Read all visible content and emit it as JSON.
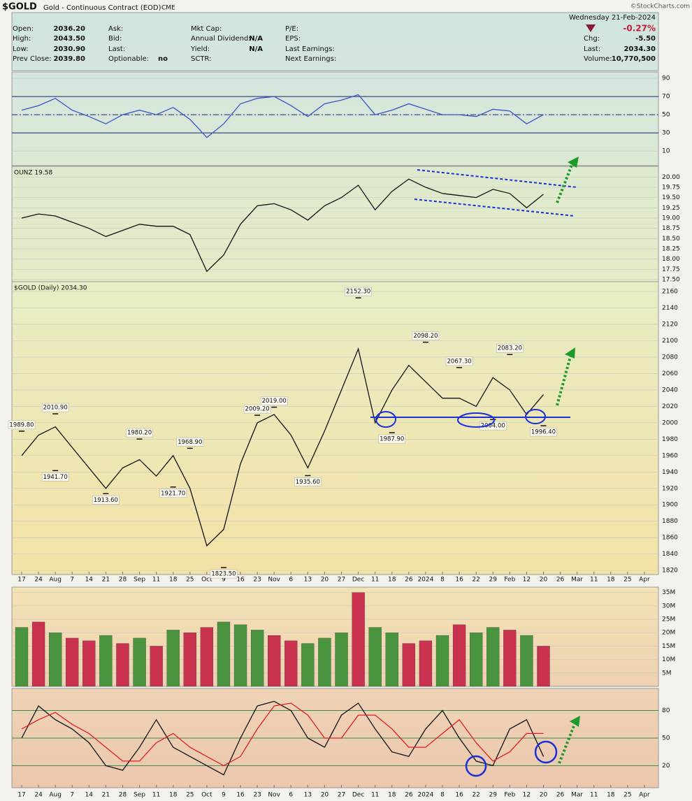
{
  "header": {
    "symbol": "$GOLD",
    "name": "Gold - Continuous Contract (EOD)",
    "exchange": "CME",
    "credit": "©StockCharts.com",
    "date": "Wednesday  21-Feb-2024",
    "change_pct": "-0.27%",
    "columns": [
      [
        {
          "label": "Open:",
          "value": "2036.20"
        },
        {
          "label": "High:",
          "value": "2043.50"
        },
        {
          "label": "Low:",
          "value": "2030.90"
        },
        {
          "label": "Prev Close:",
          "value": "2039.80"
        }
      ],
      [
        {
          "label": "Ask:"
        },
        {
          "label": "Bid:"
        },
        {
          "label": "Last:"
        },
        {
          "label": "Optionable:",
          "value": "no"
        }
      ],
      [
        {
          "label": "Mkt Cap:"
        },
        {
          "label": "Annual Dividend:",
          "value": "N/A"
        },
        {
          "label": "Yield:",
          "value": "N/A"
        },
        {
          "label": "SCTR:"
        }
      ],
      [
        {
          "label": "P/E:"
        },
        {
          "label": "EPS:"
        },
        {
          "label": "Last Earnings:"
        },
        {
          "label": "Next Earnings:"
        }
      ],
      [
        {
          "label": "Chg:",
          "value": "-5.50"
        },
        {
          "label": "Last:",
          "value": "2034.30"
        },
        {
          "label": "Volume:",
          "value": "10,770,500"
        }
      ]
    ]
  },
  "chart_data": [
    {
      "type": "line",
      "ylim": [
        -6,
        97
      ],
      "yticks": [
        10,
        30,
        50,
        70,
        90
      ],
      "grid": true,
      "hlines": [
        {
          "value": 70
        },
        {
          "value": 50,
          "dashed": true
        },
        {
          "value": 30
        }
      ],
      "series": [
        {
          "color": "#3a55c8",
          "values": [
            55,
            60,
            68,
            55,
            48,
            40,
            50,
            55,
            50,
            58,
            45,
            25,
            40,
            62,
            68,
            70,
            60,
            48,
            62,
            66,
            72,
            50,
            55,
            62,
            56,
            50,
            50,
            48,
            56,
            54,
            40,
            50,
            null,
            null,
            null,
            null,
            null,
            null
          ]
        }
      ]
    },
    {
      "type": "line",
      "title": "OUNZ 19.58",
      "ylim": [
        17.45,
        20.26
      ],
      "grid": true,
      "yticks": [
        {
          "value": 17.5,
          "label": "17.50"
        },
        17.75,
        {
          "value": 18,
          "label": "18.00"
        },
        18.25,
        {
          "value": 18.5,
          "label": "18.50"
        },
        18.75,
        {
          "value": 19,
          "label": "19.00"
        },
        19.25,
        {
          "value": 19.5,
          "label": "19.50"
        },
        19.75,
        {
          "value": 20,
          "label": "20.00"
        }
      ],
      "series": [
        {
          "color": "#111111",
          "values": [
            19.0,
            19.1,
            19.05,
            18.9,
            18.75,
            18.55,
            18.7,
            18.85,
            18.8,
            18.8,
            18.6,
            17.7,
            18.1,
            18.85,
            19.3,
            19.35,
            19.2,
            18.95,
            19.3,
            19.5,
            19.8,
            19.2,
            19.65,
            19.95,
            19.75,
            19.6,
            19.55,
            19.5,
            19.7,
            19.6,
            19.25,
            19.58,
            null,
            null,
            null,
            null,
            null,
            null
          ]
        }
      ]
    },
    {
      "type": "line",
      "title": "$GOLD (Daily) 2034.30",
      "ylim": [
        1815,
        2172
      ],
      "grid": true,
      "yticks": [
        1820,
        1840,
        1860,
        1880,
        1900,
        1920,
        1940,
        1960,
        1980,
        2000,
        2020,
        2040,
        2060,
        2080,
        2100,
        2120,
        2140,
        2160
      ],
      "categories": [
        "17",
        "24",
        "Aug",
        "7",
        "14",
        "21",
        "28",
        "Sep",
        "11",
        "18",
        "25",
        "Oct",
        "9",
        "16",
        "23",
        "Nov",
        "6",
        "13",
        "20",
        "27",
        "Dec",
        "11",
        "18",
        "26",
        "2024",
        "8",
        "16",
        "22",
        "29",
        "Feb",
        "12",
        "20",
        "26",
        "Mar",
        "11",
        "18",
        "25",
        "Apr"
      ],
      "series": [
        {
          "color": "#111111",
          "values": [
            1960,
            1985,
            1995,
            1970,
            1945,
            1920,
            1945,
            1955,
            1935,
            1960,
            1920,
            1850,
            1870,
            1950,
            2000,
            2010,
            1985,
            1945,
            1990,
            2040,
            2090,
            2000,
            2040,
            2070,
            2050,
            2030,
            2030,
            2020,
            2055,
            2040,
            2010,
            2034.3,
            null,
            null,
            null,
            null,
            null,
            null
          ]
        }
      ],
      "marked_highs": {
        "values": [
          1989.8,
          null,
          2010.9,
          null,
          null,
          null,
          null,
          1980.2,
          null,
          null,
          1968.9,
          null,
          null,
          null,
          2009.2,
          2019,
          null,
          null,
          null,
          null,
          2152.3,
          null,
          null,
          null,
          2098.2,
          null,
          2067.3,
          null,
          null,
          2083.2,
          null,
          null,
          null,
          null,
          null,
          null,
          null,
          null
        ],
        "value_labels": [
          "1989.80",
          null,
          "2010.90",
          null,
          null,
          null,
          null,
          "1980.20",
          null,
          null,
          "1968.90",
          null,
          null,
          null,
          "2009.20",
          "2019.00",
          null,
          null,
          null,
          null,
          "2152.30",
          null,
          null,
          null,
          "2098.20",
          null,
          "2067.30",
          null,
          null,
          "2083.20",
          null,
          null,
          null,
          null,
          null,
          null,
          null,
          null
        ]
      },
      "marked_lows": {
        "values": [
          null,
          null,
          1941.7,
          null,
          null,
          1913.6,
          null,
          null,
          null,
          1921.7,
          null,
          null,
          1823.5,
          null,
          null,
          null,
          null,
          1935.6,
          null,
          null,
          null,
          null,
          1987.9,
          null,
          null,
          null,
          null,
          null,
          2004,
          null,
          null,
          1996.4,
          null,
          null,
          null,
          null,
          null,
          null
        ],
        "value_labels": [
          null,
          null,
          "1941.70",
          null,
          null,
          "1913.60",
          null,
          null,
          null,
          "1921.70",
          null,
          null,
          "1823.50",
          null,
          null,
          null,
          null,
          "1935.60",
          null,
          null,
          null,
          null,
          "1987.90",
          null,
          null,
          null,
          null,
          null,
          "2004.00",
          null,
          null,
          "1996.40",
          null,
          null,
          null,
          null,
          null,
          null
        ]
      }
    },
    {
      "type": "bar",
      "ylim": [
        0,
        37000000
      ],
      "grid": true,
      "yticks": [
        {
          "value": 5000000,
          "label": "5M"
        },
        {
          "value": 10000000,
          "label": "10M"
        },
        {
          "value": 15000000,
          "label": "15M"
        },
        {
          "value": 20000000,
          "label": "20M"
        },
        {
          "value": 25000000,
          "label": "25M"
        },
        {
          "value": 30000000,
          "label": "30M"
        },
        {
          "value": 35000000,
          "label": "35M"
        }
      ],
      "values": [
        22000000,
        24000000,
        20000000,
        18000000,
        17000000,
        19000000,
        16000000,
        18000000,
        15000000,
        21000000,
        20000000,
        22000000,
        24000000,
        23000000,
        21000000,
        19000000,
        17000000,
        16000000,
        18000000,
        20000000,
        35000000,
        22000000,
        20000000,
        16000000,
        17000000,
        19000000,
        23000000,
        20000000,
        22000000,
        21000000,
        19000000,
        15000000,
        null,
        null,
        null,
        null,
        null,
        null
      ],
      "colors": [
        "#4a9440",
        "#c8324e",
        "#4a9440",
        "#c8324e",
        "#c8324e",
        "#4a9440",
        "#c8324e",
        "#4a9440",
        "#c8324e",
        "#4a9440",
        "#c8324e",
        "#c8324e",
        "#4a9440",
        "#4a9440",
        "#4a9440",
        "#c8324e",
        "#c8324e",
        "#4a9440",
        "#4a9440",
        "#4a9440",
        "#c8324e",
        "#4a9440",
        "#4a9440",
        "#c8324e",
        "#c8324e",
        "#4a9440",
        "#c8324e",
        "#4a9440",
        "#4a9440",
        "#c8324e",
        "#4a9440",
        "#c8324e",
        null,
        null,
        null,
        null,
        null,
        null
      ]
    },
    {
      "type": "line",
      "ylim": [
        -4,
        104
      ],
      "yticks": [
        20,
        50,
        80
      ],
      "grid": true,
      "grid_color": "#3f8a4a",
      "categories": [
        "17",
        "24",
        "Aug",
        "7",
        "14",
        "21",
        "28",
        "Sep",
        "11",
        "18",
        "25",
        "Oct",
        "9",
        "16",
        "23",
        "Nov",
        "6",
        "13",
        "20",
        "27",
        "Dec",
        "11",
        "18",
        "26",
        "2024",
        "8",
        "16",
        "22",
        "29",
        "Feb",
        "12",
        "20",
        "26",
        "Mar",
        "11",
        "18",
        "25",
        "Apr"
      ],
      "series": [
        {
          "color": "#111111",
          "values": [
            50,
            85,
            70,
            60,
            45,
            20,
            15,
            40,
            70,
            40,
            30,
            20,
            10,
            50,
            85,
            90,
            80,
            50,
            40,
            75,
            88,
            60,
            35,
            30,
            60,
            80,
            50,
            25,
            20,
            60,
            70,
            30,
            null,
            null,
            null,
            null,
            null,
            null
          ]
        },
        {
          "color": "#e02020",
          "values": [
            60,
            70,
            78,
            65,
            55,
            40,
            25,
            25,
            45,
            55,
            40,
            30,
            20,
            30,
            60,
            85,
            88,
            75,
            50,
            50,
            75,
            75,
            60,
            40,
            40,
            55,
            70,
            45,
            25,
            35,
            55,
            55,
            null,
            null,
            null,
            null,
            null,
            null
          ]
        }
      ]
    }
  ]
}
